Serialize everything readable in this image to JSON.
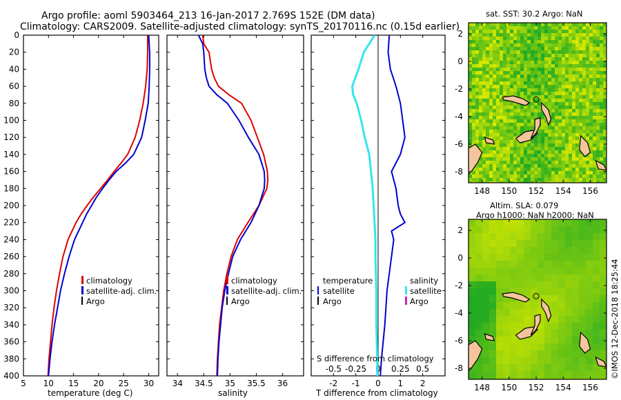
{
  "header": {
    "title_line1": "Argo profile: aoml 5903464_213 16-Jan-2017 2.769S 152E (DM data)",
    "title_line2": "Climatology: CARS2009. Satellite-adjusted climatology: synTS_20170116.nc (0.15d earlier)"
  },
  "colors": {
    "climatology": "#dd0000",
    "satellite_adj": "#0000cc",
    "argo": "#000000",
    "s_diff": "#33e5ee",
    "argo_salinity": "#cc22cc",
    "sst_low": "#22aa22",
    "sst_high": "#d4e800",
    "land": "#f4c59c"
  },
  "chart_data": [
    {
      "type": "line",
      "id": "temperature",
      "xlabel": "temperature (deg C)",
      "ylabel": "",
      "xlim": [
        5,
        32
      ],
      "ylim": [
        400,
        0
      ],
      "xticks": [
        5,
        10,
        15,
        20,
        25,
        30
      ],
      "yticks": [
        0,
        20,
        40,
        60,
        80,
        100,
        120,
        140,
        160,
        180,
        200,
        220,
        240,
        260,
        280,
        300,
        320,
        340,
        360,
        380,
        400
      ],
      "legend": [
        "climatology",
        "satellite-adj. clim.",
        "Argo"
      ],
      "series": [
        {
          "name": "climatology",
          "depth": [
            0,
            20,
            40,
            60,
            80,
            100,
            120,
            140,
            150,
            160,
            170,
            180,
            190,
            200,
            210,
            220,
            240,
            260,
            280,
            300,
            320,
            340,
            360,
            380,
            400
          ],
          "values": [
            29.8,
            29.8,
            29.7,
            29.4,
            28.9,
            28.2,
            27.3,
            25.8,
            24.5,
            23.1,
            21.8,
            20.4,
            19.0,
            17.7,
            16.5,
            15.5,
            13.9,
            12.9,
            12.2,
            11.6,
            11.1,
            10.7,
            10.4,
            10.1,
            9.9
          ]
        },
        {
          "name": "satellite-adj. clim.",
          "depth": [
            0,
            20,
            40,
            60,
            80,
            100,
            120,
            140,
            150,
            160,
            170,
            180,
            190,
            200,
            210,
            220,
            240,
            260,
            280,
            300,
            320,
            340,
            360,
            380,
            400
          ],
          "values": [
            30.0,
            30.2,
            30.2,
            30.1,
            29.9,
            29.3,
            28.6,
            27.0,
            25.4,
            23.5,
            22.1,
            20.8,
            19.6,
            18.6,
            17.6,
            16.8,
            15.2,
            14.1,
            13.2,
            12.4,
            11.8,
            11.2,
            10.7,
            10.3,
            10.0
          ]
        }
      ]
    },
    {
      "type": "line",
      "id": "salinity",
      "xlabel": "salinity",
      "ylabel": "",
      "xlim": [
        33.8,
        36.4
      ],
      "ylim": [
        400,
        0
      ],
      "xticks": [
        34,
        34.5,
        35,
        35.5,
        36
      ],
      "legend": [
        "climatology",
        "satellite-adj. clim.",
        "Argo"
      ],
      "series": [
        {
          "name": "climatology",
          "depth": [
            0,
            10,
            20,
            40,
            50,
            60,
            70,
            80,
            100,
            120,
            140,
            160,
            170,
            180,
            200,
            220,
            240,
            260,
            280,
            300,
            320,
            340,
            360,
            380,
            400
          ],
          "values": [
            34.48,
            34.5,
            34.6,
            34.65,
            34.7,
            34.78,
            34.98,
            35.22,
            35.4,
            35.52,
            35.64,
            35.71,
            35.72,
            35.7,
            35.55,
            35.34,
            35.14,
            35.02,
            34.94,
            34.88,
            34.84,
            34.8,
            34.78,
            34.76,
            34.75
          ]
        },
        {
          "name": "satellite-adj. clim.",
          "depth": [
            0,
            10,
            20,
            40,
            50,
            60,
            70,
            80,
            100,
            120,
            140,
            160,
            170,
            180,
            200,
            220,
            240,
            260,
            280,
            300,
            320,
            340,
            360,
            380,
            400
          ],
          "values": [
            34.4,
            34.48,
            34.5,
            34.52,
            34.55,
            34.6,
            34.75,
            34.95,
            35.17,
            35.35,
            35.55,
            35.65,
            35.66,
            35.65,
            35.55,
            35.4,
            35.2,
            35.05,
            34.97,
            34.9,
            34.85,
            34.82,
            34.79,
            34.77,
            34.76
          ]
        }
      ]
    },
    {
      "type": "line",
      "id": "difference",
      "xlabel": "T difference from climatology",
      "xlabel_top": "S difference from climatology",
      "xlim": [
        -3,
        3
      ],
      "ylim": [
        400,
        0
      ],
      "xticks": [
        -2,
        -1,
        0,
        1,
        2
      ],
      "xticklabels_s": [
        "-0.5",
        "-0.25",
        "0",
        "0.25",
        "0.5"
      ],
      "legend_temperature": {
        "title": "temperature",
        "items": [
          "satellite",
          "Argo"
        ]
      },
      "legend_salinity": {
        "title": "salinity",
        "items": [
          "satellite",
          "Argo"
        ]
      },
      "series": [
        {
          "name": "T satellite",
          "depth": [
            0,
            20,
            40,
            60,
            80,
            100,
            120,
            140,
            160,
            180,
            200,
            210,
            220,
            230,
            240,
            260,
            300,
            340,
            380,
            400
          ],
          "values": [
            0.5,
            0.45,
            0.55,
            0.8,
            1.0,
            1.1,
            1.2,
            1.0,
            0.6,
            0.8,
            0.9,
            1.0,
            1.2,
            0.6,
            0.7,
            0.6,
            0.4,
            0.3,
            0.15,
            0.1
          ]
        },
        {
          "name": "S satellite",
          "depth": [
            0,
            10,
            20,
            40,
            60,
            70,
            80,
            100,
            120,
            140,
            160,
            180,
            200,
            220,
            240,
            260,
            300,
            340,
            380,
            400
          ],
          "values": [
            -0.04,
            -0.1,
            -0.16,
            -0.22,
            -0.29,
            -0.28,
            -0.24,
            -0.19,
            -0.15,
            -0.1,
            -0.08,
            -0.06,
            -0.05,
            -0.04,
            -0.03,
            -0.03,
            -0.02,
            -0.02,
            -0.01,
            -0.01
          ]
        }
      ]
    },
    {
      "type": "heatmap",
      "id": "sst_map",
      "title": "sat. SST: 30.2 Argo: NaN",
      "xlim": [
        147,
        157.2
      ],
      "ylim": [
        -8.8,
        2.8
      ],
      "xticks": [
        148,
        150,
        152,
        154,
        156
      ],
      "yticks": [
        2,
        0,
        -2,
        -4,
        -6,
        -8
      ],
      "argo_position": {
        "lon": 152,
        "lat": -2.769
      }
    },
    {
      "type": "heatmap",
      "id": "sla_map",
      "title_line1": "Altim. SLA: 0.079",
      "title_line2": "Argo h1000: NaN h2000: NaN",
      "xlim": [
        147,
        157.2
      ],
      "ylim": [
        -8.8,
        2.8
      ],
      "xticks": [
        148,
        150,
        152,
        154,
        156
      ],
      "yticks": [
        2,
        0,
        -2,
        -4,
        -6,
        -8
      ],
      "argo_position": {
        "lon": 152,
        "lat": -2.769
      }
    }
  ],
  "credit": "©IMOS 12-Dec-2018 18:25:44"
}
